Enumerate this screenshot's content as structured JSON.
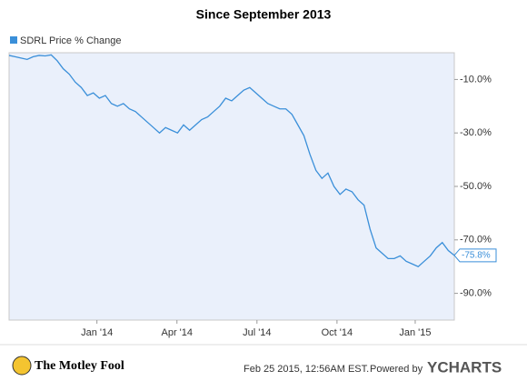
{
  "chart_data": {
    "type": "line",
    "title": "Since September 2013",
    "series": [
      {
        "name": "SDRL Price  % Change",
        "color": "#3a8fd9",
        "values": [
          -1,
          -1.5,
          -2,
          -2.5,
          -1.5,
          -1,
          -1.2,
          -0.8,
          -3,
          -6,
          -8,
          -11,
          -13,
          -16,
          -15,
          -17,
          -16,
          -19,
          -20,
          -19,
          -21,
          -22,
          -24,
          -26,
          -28,
          -30,
          -28,
          -29,
          -30,
          -27,
          -29,
          -27,
          -25,
          -24,
          -22,
          -20,
          -17,
          -18,
          -16,
          -14,
          -13,
          -15,
          -17,
          -19,
          -20,
          -21,
          -21,
          -23,
          -27,
          -31,
          -38,
          -44,
          -47,
          -45,
          -50,
          -53,
          -51,
          -52,
          -55,
          -57,
          -66,
          -73,
          -75,
          -77,
          -77,
          -76,
          -78,
          -79,
          -80,
          -78,
          -76,
          -73,
          -71,
          -74,
          -75.8
        ],
        "value_labels": [
          null,
          null,
          null,
          null,
          null,
          null,
          null,
          null,
          null,
          null,
          null,
          null,
          null,
          null,
          null,
          null,
          null,
          null,
          null,
          null,
          null,
          null,
          null,
          null,
          null,
          null,
          null,
          null,
          null,
          null,
          null,
          null,
          null,
          null,
          null,
          null,
          null,
          null,
          null,
          null,
          null,
          null,
          null,
          null,
          null,
          null,
          null,
          null,
          null,
          null,
          null,
          null,
          null,
          null,
          null,
          null,
          null,
          null,
          null,
          null,
          null,
          null,
          null,
          null,
          null,
          null,
          null,
          null,
          null,
          null,
          null,
          null,
          null,
          null,
          "-75.8%"
        ]
      }
    ],
    "xlim": [
      0,
      74
    ],
    "xticks": [
      {
        "value": 14.6,
        "label": "Jan '14"
      },
      {
        "value": 27.9,
        "label": "Apr '14"
      },
      {
        "value": 41.2,
        "label": "Jul '14"
      },
      {
        "value": 54.5,
        "label": "Oct '14"
      },
      {
        "value": 67.5,
        "label": "Jan '15"
      }
    ],
    "ylim": [
      -100,
      0
    ],
    "yticks": [
      {
        "value": -10,
        "label": "-10.0%"
      },
      {
        "value": -30,
        "label": "-30.0%"
      },
      {
        "value": -50,
        "label": "-50.0%"
      },
      {
        "value": -70,
        "label": "-70.0%"
      },
      {
        "value": -90,
        "label": "-90.0%"
      }
    ],
    "footer": {
      "brand": "The Motley Fool",
      "timestamp": "Feb 25 2015, 12:56AM EST.",
      "powered": "Powered by",
      "source": "YCHARTS"
    }
  }
}
